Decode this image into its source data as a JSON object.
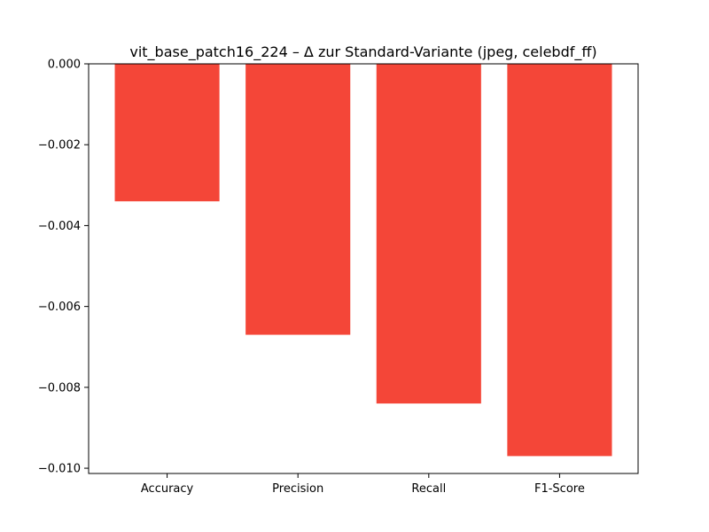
{
  "chart_data": {
    "type": "bar",
    "title": "vit_base_patch16_224 – Δ zur Standard-Variante (jpeg, celebdf_ff)",
    "xlabel": "",
    "ylabel": "",
    "categories": [
      "Accuracy",
      "Precision",
      "Recall",
      "F1-Score"
    ],
    "values": [
      -0.0034,
      -0.0067,
      -0.0084,
      -0.0097
    ],
    "ylim": [
      -0.01013,
      0.0
    ],
    "yticks": [
      0.0,
      -0.002,
      -0.004,
      -0.006,
      -0.008,
      -0.01
    ],
    "ytick_labels": [
      "0.000",
      "−0.002",
      "−0.004",
      "−0.006",
      "−0.008",
      "−0.010"
    ],
    "bar_color": "#f44638",
    "grid": false,
    "legend": "none"
  }
}
